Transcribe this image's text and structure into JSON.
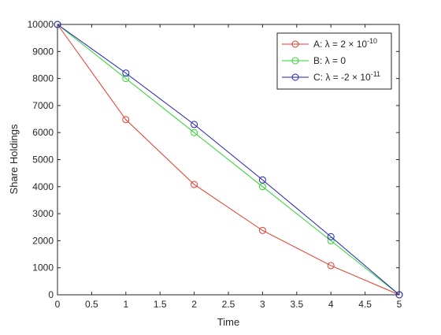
{
  "chart_data": {
    "type": "line",
    "title": "",
    "xlabel": "Time",
    "ylabel": "Share Holdings",
    "xlim": [
      0,
      5
    ],
    "ylim": [
      0,
      10000
    ],
    "x_ticks": [
      "0",
      "0.5",
      "1",
      "1.5",
      "2",
      "2.5",
      "3",
      "3.5",
      "4",
      "4.5",
      "5"
    ],
    "y_ticks": [
      "0",
      "1000",
      "2000",
      "3000",
      "4000",
      "5000",
      "6000",
      "7000",
      "8000",
      "9000",
      "10000"
    ],
    "grid": false,
    "legend_position": "top-right",
    "marker": "open-circle",
    "x": [
      0,
      1,
      2,
      3,
      4,
      5
    ],
    "series": [
      {
        "name": "A: λ = 2 × 10",
        "name_sup": "-10",
        "color": "#e8392b",
        "values": [
          10000,
          6480,
          4080,
          2380,
          1080,
          0
        ]
      },
      {
        "name": "B: λ = 0",
        "name_sup": "",
        "color": "#2fd62f",
        "values": [
          10000,
          8000,
          6000,
          4000,
          2000,
          0
        ]
      },
      {
        "name": "C: λ = -2 × 10",
        "name_sup": "-11",
        "color": "#1f1fbf",
        "values": [
          10000,
          8200,
          6300,
          4250,
          2150,
          0
        ]
      }
    ]
  }
}
